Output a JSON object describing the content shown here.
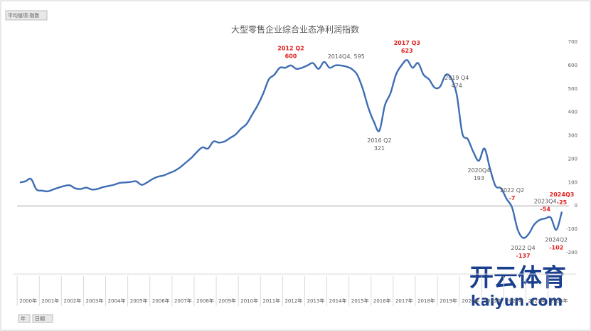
{
  "chart_data": {
    "type": "line",
    "title": "大型零售企业综合业态净利润指数",
    "field_button": "平均值项:指数",
    "filter_buttons": [
      "年",
      "日期"
    ],
    "watermark": [
      "开云体育",
      "kaiyun.com"
    ],
    "categories": [
      "2000年",
      null,
      null,
      null,
      "2001年",
      null,
      null,
      null,
      "2002年",
      null,
      null,
      null,
      "2003年",
      null,
      null,
      null,
      "2004年",
      null,
      null,
      null,
      "2005年",
      null,
      null,
      null,
      "2006年",
      null,
      null,
      null,
      "2007年",
      null,
      null,
      null,
      "2008年",
      null,
      null,
      null,
      "2009年",
      null,
      null,
      null,
      "2010年",
      null,
      null,
      null,
      "2011年",
      null,
      null,
      null,
      "2012年",
      null,
      null,
      null,
      "2013年",
      null,
      null,
      null,
      "2014年",
      null,
      null,
      null,
      "2015年",
      null,
      null,
      null,
      "2016年",
      null,
      null,
      null,
      "2017年",
      null,
      null,
      null,
      "2018年",
      null,
      null,
      null,
      "2019年",
      null,
      null,
      null,
      "2020年",
      null,
      null,
      null,
      "2021年",
      null,
      null,
      null,
      "2022年",
      null,
      null,
      null,
      "2023年",
      null,
      null,
      null,
      "2024年",
      null,
      null
    ],
    "series": [
      {
        "name": "指数",
        "color": "#3e6db3",
        "values": [
          100,
          105,
          115,
          70,
          65,
          62,
          70,
          78,
          85,
          88,
          75,
          72,
          78,
          70,
          72,
          80,
          85,
          90,
          98,
          100,
          102,
          105,
          90,
          100,
          115,
          125,
          130,
          140,
          150,
          165,
          185,
          205,
          230,
          250,
          245,
          275,
          270,
          275,
          290,
          305,
          330,
          350,
          390,
          430,
          480,
          540,
          560,
          590,
          590,
          600,
          585,
          590,
          600,
          610,
          585,
          615,
          590,
          600,
          600,
          595,
          585,
          560,
          500,
          420,
          360,
          321,
          430,
          480,
          560,
          600,
          623,
          590,
          610,
          560,
          540,
          505,
          510,
          560,
          545,
          474,
          310,
          285,
          230,
          193,
          245,
          160,
          85,
          75,
          30,
          -7,
          -100,
          -137,
          -120,
          -80,
          -60,
          -54,
          -50,
          -102,
          -25
        ]
      }
    ],
    "point_labels": [
      null,
      null,
      null,
      null,
      null,
      null,
      null,
      null,
      null,
      null,
      null,
      null,
      null,
      null,
      null,
      null,
      null,
      null,
      null,
      null,
      null,
      null,
      null,
      null,
      null,
      null,
      null,
      null,
      null,
      null,
      null,
      null,
      null,
      null,
      null,
      null,
      null,
      null,
      null,
      null,
      null,
      null,
      null,
      null,
      null,
      null,
      null,
      null,
      null,
      "2012 Q2",
      null,
      null,
      null,
      null,
      null,
      null,
      null,
      null,
      null,
      "2014Q4, 595",
      null,
      null,
      null,
      null,
      null,
      "2016 Q2",
      null,
      null,
      null,
      null,
      "2017 Q3",
      null,
      null,
      null,
      null,
      null,
      null,
      null,
      null,
      "2019 Q4",
      null,
      null,
      null,
      "2020Q4",
      null,
      null,
      null,
      null,
      null,
      "2022 Q2",
      null,
      "2022 Q4",
      null,
      null,
      null,
      "2023Q4",
      null,
      "2024Q2",
      "2024Q3"
    ],
    "value_labels": [
      null,
      null,
      null,
      null,
      null,
      null,
      null,
      null,
      null,
      null,
      null,
      null,
      null,
      null,
      null,
      null,
      null,
      null,
      null,
      null,
      null,
      null,
      null,
      null,
      null,
      null,
      null,
      null,
      null,
      null,
      null,
      null,
      null,
      null,
      null,
      null,
      null,
      null,
      null,
      null,
      null,
      null,
      null,
      null,
      null,
      null,
      null,
      null,
      null,
      "600",
      null,
      null,
      null,
      null,
      null,
      null,
      null,
      null,
      null,
      null,
      null,
      null,
      null,
      null,
      null,
      "321",
      null,
      null,
      null,
      null,
      "623",
      null,
      null,
      null,
      null,
      null,
      null,
      null,
      null,
      "474",
      null,
      null,
      null,
      "193",
      null,
      null,
      null,
      null,
      null,
      "-7",
      null,
      "-137",
      null,
      null,
      null,
      "-54",
      null,
      "-102",
      "-25"
    ],
    "label_color": "#595959",
    "highlight_color": "#e0201f",
    "highlight_point_labels": [
      "2012 Q2",
      "2017 Q3",
      "2024Q3"
    ],
    "highlight_value_labels": [
      "600",
      "623",
      "-7",
      "-137",
      "-54",
      "-102",
      "-25"
    ],
    "ylim": [
      -200,
      700
    ],
    "yticks": [
      -200,
      -100,
      0,
      100,
      200,
      300,
      400,
      500,
      600,
      700
    ],
    "zero_line": true
  }
}
